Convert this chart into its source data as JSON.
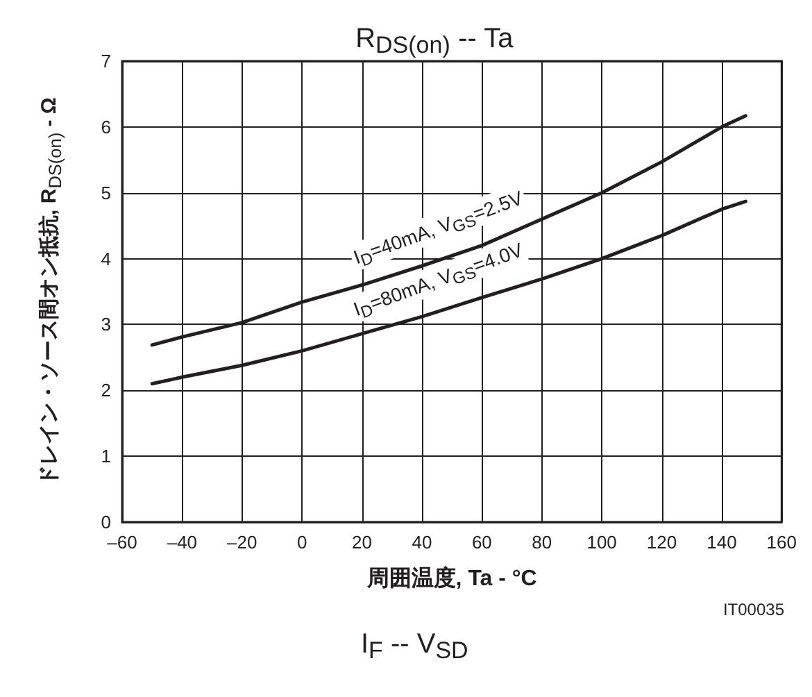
{
  "chart_data": {
    "type": "line",
    "title": "R$_{DS(on)}$ -- Ta",
    "xlabel": "周囲温度, Ta - °C",
    "ylabel": "ドレイン・ソース間オン抵抗, R$_{DS(on)}$ - Ω",
    "x": [
      -50,
      -40,
      -20,
      0,
      20,
      40,
      60,
      80,
      100,
      120,
      140,
      148
    ],
    "series": [
      {
        "name": "I$_{D}$=40mA, V$_{GS}$=2.5V",
        "color": "#231f20",
        "values": [
          2.69,
          2.81,
          3.03,
          3.34,
          3.6,
          3.89,
          4.2,
          4.6,
          5.0,
          5.47,
          6.0,
          6.17
        ]
      },
      {
        "name": "I$_{D}$=80mA, V$_{GS}$=4.0V",
        "color": "#231f20",
        "values": [
          2.1,
          2.2,
          2.38,
          2.6,
          2.86,
          3.12,
          3.41,
          3.69,
          4.0,
          4.35,
          4.75,
          4.87
        ]
      }
    ],
    "xlim": [
      -60,
      160
    ],
    "xticks": [
      {
        "value": -60,
        "label": "–60"
      },
      {
        "value": -40,
        "label": "–40"
      },
      {
        "value": -20,
        "label": "–20"
      },
      0,
      20,
      40,
      60,
      80,
      100,
      120,
      140,
      160
    ],
    "ylim": [
      0,
      7
    ],
    "yticks": [
      0,
      1,
      2,
      3,
      4,
      5,
      6,
      7
    ],
    "grid": true,
    "legend": false,
    "marker": "none",
    "line_style": "solid",
    "annotations": [
      "IT00035",
      "I$_{F}$ -- V$_{SD}$"
    ]
  }
}
